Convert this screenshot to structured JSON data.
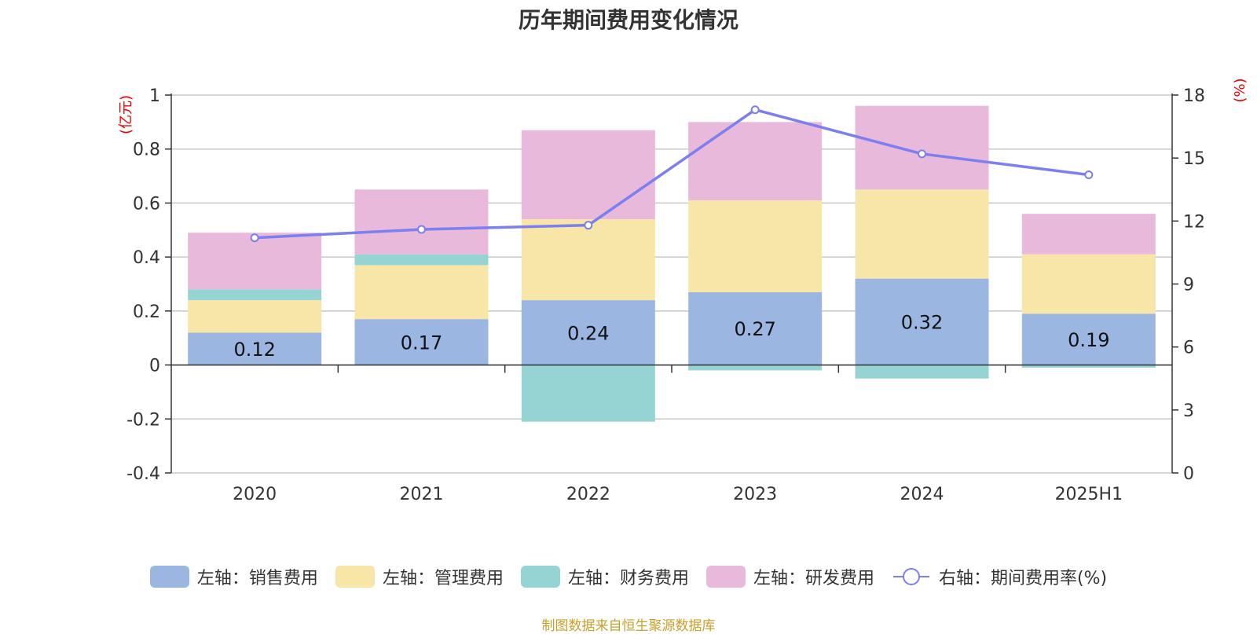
{
  "title": "历年期间费用变化情况",
  "source_note": "制图数据来自恒生聚源数据库",
  "chart_data": {
    "type": "bar",
    "stacked": true,
    "categories": [
      "2020",
      "2021",
      "2022",
      "2023",
      "2024",
      "2025H1"
    ],
    "left_axis": {
      "unit": "(亿元)",
      "ylim": [
        -0.4,
        1
      ],
      "ticks": [
        1,
        0.8,
        0.6,
        0.4,
        0.2,
        0,
        -0.2,
        -0.4
      ],
      "tick_labels": [
        "1",
        "0.8",
        "0.6",
        "0.4",
        "0.2",
        "0",
        "-0.2",
        "-0.4"
      ]
    },
    "right_axis": {
      "unit": "(%)",
      "ylim": [
        0,
        18
      ],
      "ticks": [
        18,
        15,
        12,
        9,
        6,
        3,
        0
      ],
      "tick_labels": [
        "18",
        "15",
        "12",
        "9",
        "6",
        "3",
        "0"
      ]
    },
    "series": [
      {
        "name": "左轴：销售费用",
        "type": "bar",
        "axis": "left",
        "color": "#9bb7e1",
        "values": [
          0.12,
          0.17,
          0.24,
          0.27,
          0.32,
          0.19
        ],
        "labels": [
          "0.12",
          "0.17",
          "0.24",
          "0.27",
          "0.32",
          "0.19"
        ]
      },
      {
        "name": "左轴：管理费用",
        "type": "bar",
        "axis": "left",
        "color": "#f8e6a8",
        "values": [
          0.12,
          0.2,
          0.3,
          0.34,
          0.33,
          0.22
        ]
      },
      {
        "name": "左轴：财务费用",
        "type": "bar",
        "axis": "left",
        "color": "#96d4d4",
        "values": [
          0.04,
          0.04,
          -0.21,
          -0.02,
          -0.05,
          -0.01
        ]
      },
      {
        "name": "左轴：研发费用",
        "type": "bar",
        "axis": "left",
        "color": "#e8b9db",
        "values": [
          0.21,
          0.24,
          0.33,
          0.29,
          0.31,
          0.15
        ]
      },
      {
        "name": "右轴：期间费用率(%)",
        "type": "line",
        "axis": "right",
        "color": "#7b7fef",
        "values": [
          11.2,
          11.6,
          11.8,
          17.3,
          15.2,
          14.2
        ]
      }
    ],
    "grid": true,
    "legend_position": "bottom"
  }
}
